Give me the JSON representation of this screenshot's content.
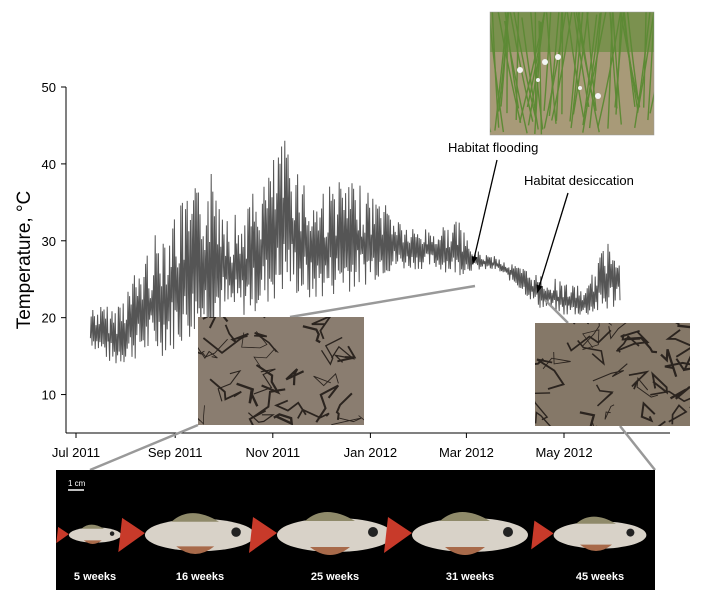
{
  "chart_data": {
    "type": "line",
    "ylabel": "Temperature, °C",
    "ylim": [
      5,
      50
    ],
    "yticks": [
      10,
      20,
      30,
      40,
      50
    ],
    "xlim": [
      "2011-07-01",
      "2012-06-30"
    ],
    "xticks": [
      "Jul 2011",
      "Sep 2011",
      "Nov 2011",
      "Jan 2012",
      "Mar 2012",
      "May 2012"
    ],
    "xtick_dates": [
      "2011-07-01",
      "2011-09-01",
      "2011-11-01",
      "2012-01-01",
      "2012-03-01",
      "2012-05-01"
    ],
    "grid": false,
    "series_color": "#555555",
    "envelope": [
      {
        "date": "2011-07-10",
        "min": 16,
        "max": 22
      },
      {
        "date": "2011-07-25",
        "min": 13,
        "max": 22
      },
      {
        "date": "2011-08-10",
        "min": 14,
        "max": 28
      },
      {
        "date": "2011-08-25",
        "min": 14,
        "max": 34
      },
      {
        "date": "2011-09-10",
        "min": 16,
        "max": 37
      },
      {
        "date": "2011-09-25",
        "min": 17,
        "max": 41
      },
      {
        "date": "2011-10-10",
        "min": 19,
        "max": 34
      },
      {
        "date": "2011-10-25",
        "min": 20,
        "max": 39
      },
      {
        "date": "2011-11-10",
        "min": 22,
        "max": 45
      },
      {
        "date": "2011-11-25",
        "min": 21,
        "max": 37
      },
      {
        "date": "2011-12-10",
        "min": 22,
        "max": 39
      },
      {
        "date": "2011-12-25",
        "min": 23,
        "max": 38
      },
      {
        "date": "2012-01-10",
        "min": 25,
        "max": 36
      },
      {
        "date": "2012-01-25",
        "min": 26,
        "max": 32
      },
      {
        "date": "2012-02-10",
        "min": 26,
        "max": 32
      },
      {
        "date": "2012-02-25",
        "min": 25,
        "max": 33
      },
      {
        "date": "2012-03-05",
        "min": 26,
        "max": 29
      },
      {
        "date": "2012-03-20",
        "min": 26,
        "max": 28
      },
      {
        "date": "2012-04-01",
        "min": 24,
        "max": 27
      },
      {
        "date": "2012-04-15",
        "min": 21,
        "max": 26
      },
      {
        "date": "2012-04-30",
        "min": 20,
        "max": 25
      },
      {
        "date": "2012-05-15",
        "min": 20,
        "max": 24
      },
      {
        "date": "2012-05-28",
        "min": 20,
        "max": 31
      },
      {
        "date": "2012-06-05",
        "min": 21,
        "max": 32
      }
    ],
    "annotations": [
      {
        "text": "Habitat flooding",
        "arrow_to_date": "2012-03-05",
        "arrow_to_value": 27
      },
      {
        "text": "Habitat desiccation",
        "arrow_to_date": "2012-04-10",
        "arrow_to_value": 23
      }
    ]
  },
  "panel": {
    "scale_label": "1 cm",
    "fish": [
      {
        "label": "5 weeks",
        "scale": 0.45
      },
      {
        "label": "16 weeks",
        "scale": 0.95
      },
      {
        "label": "25 weeks",
        "scale": 1.0
      },
      {
        "label": "31 weeks",
        "scale": 1.0
      },
      {
        "label": "45 weeks",
        "scale": 0.8
      }
    ]
  },
  "photos": [
    {
      "name": "habitat-water-photo"
    },
    {
      "name": "dry-mud-photo-left"
    },
    {
      "name": "dry-mud-photo-right"
    }
  ],
  "colors": {
    "line": "#555555",
    "mud": "#8a7d70",
    "mud_crack": "#2b241f",
    "water": "#a89a78",
    "grass": "#5d8a35",
    "fish_body": "#d8d2c8",
    "fish_tail": "#c83a2a",
    "panel_bg": "#000000"
  }
}
